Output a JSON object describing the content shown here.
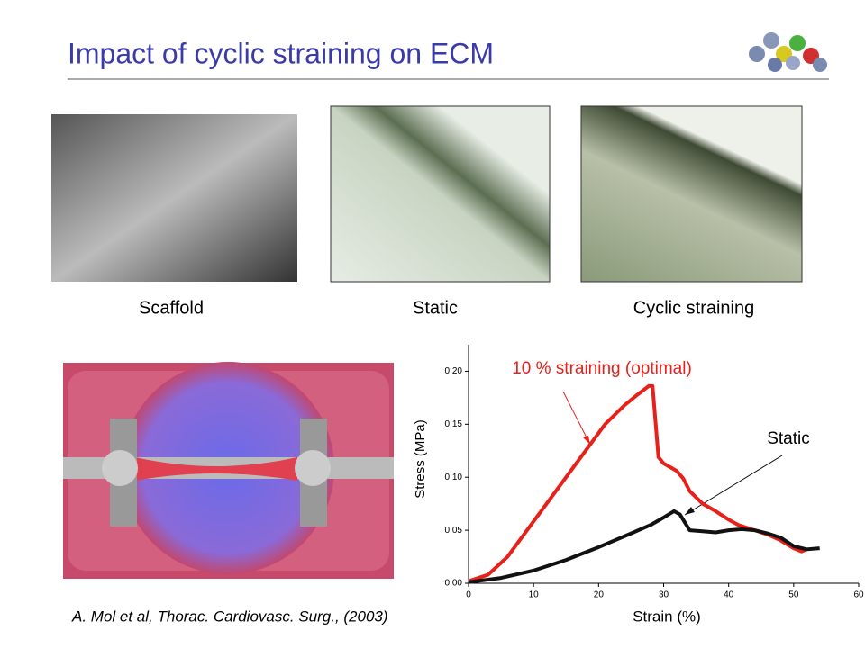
{
  "title": "Impact of cyclic straining on ECM",
  "captions": [
    "Scaffold",
    "Static",
    "Cyclic straining"
  ],
  "citation": "A. Mol et al, Thorac. Cardiovasc. Surg., (2003)",
  "chart_data": {
    "type": "line",
    "x_label": "Strain (%)",
    "y_label": "Stress (MPa)",
    "annotations": [
      "10 % straining (optimal)",
      "Static"
    ],
    "xlim": [
      0,
      60
    ],
    "xticks": [
      0,
      10,
      20,
      30,
      40,
      50,
      60
    ],
    "ylim": [
      0,
      0.225
    ],
    "yticks": [
      {
        "value": 0,
        "label": "0.00"
      },
      {
        "value": 0.05,
        "label": "0.05"
      },
      {
        "value": 0.1,
        "label": "0.10"
      },
      {
        "value": 0.15,
        "label": "0.15"
      },
      {
        "value": 0.2,
        "label": "0.20"
      }
    ],
    "series": [
      {
        "color": "#e8201a",
        "x": [
          0,
          3,
          6,
          9,
          12,
          15,
          18,
          21,
          24,
          26,
          27.7,
          28.3,
          29.2,
          30,
          32,
          33,
          34,
          36,
          38,
          40,
          41.5,
          44,
          46,
          47.8,
          50,
          51.2,
          52
        ],
        "values": [
          0.002,
          0.008,
          0.025,
          0.05,
          0.075,
          0.1,
          0.125,
          0.15,
          0.168,
          0.178,
          0.186,
          0.186,
          0.119,
          0.113,
          0.106,
          0.099,
          0.087,
          0.075,
          0.068,
          0.06,
          0.055,
          0.05,
          0.046,
          0.041,
          0.033,
          0.03,
          0.032
        ]
      },
      {
        "color": "#111111",
        "x": [
          0,
          5,
          10,
          15,
          20,
          25,
          28,
          30,
          31.6,
          32.5,
          33,
          33.5,
          34,
          36,
          38,
          40,
          42,
          44,
          46,
          48,
          50,
          52,
          54
        ],
        "values": [
          0.001,
          0.005,
          0.012,
          0.022,
          0.034,
          0.047,
          0.055,
          0.062,
          0.068,
          0.065,
          0.06,
          0.055,
          0.05,
          0.049,
          0.048,
          0.05,
          0.051,
          0.05,
          0.047,
          0.043,
          0.035,
          0.032,
          0.033
        ]
      }
    ]
  }
}
